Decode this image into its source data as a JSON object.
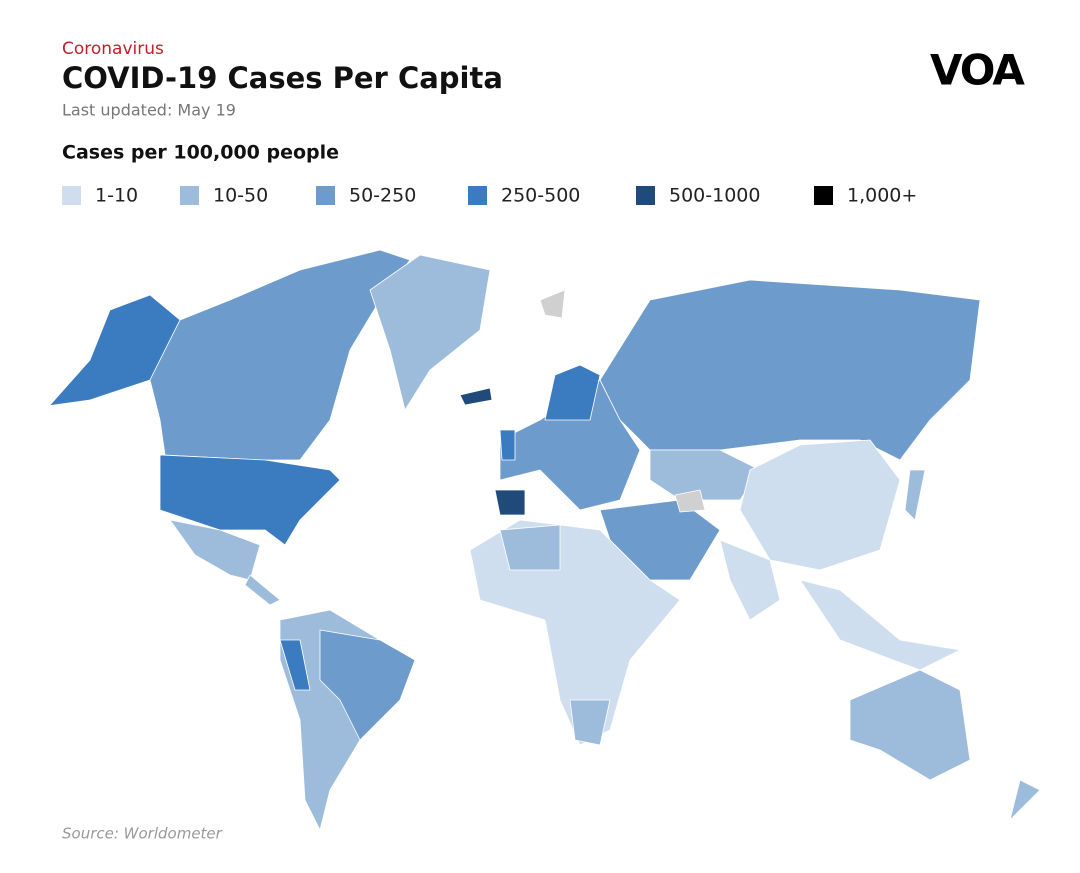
{
  "kicker": "Coronavirus",
  "title": "COVID-19 Cases Per Capita",
  "subtitle": "Last updated: May 19",
  "logo": "VOA",
  "legend": {
    "title": "Cases per 100,000 people",
    "items": [
      {
        "label": "1-10",
        "color": "#cfdeee"
      },
      {
        "label": "10-50",
        "color": "#9dbcdc"
      },
      {
        "label": "50-250",
        "color": "#6d9ccc"
      },
      {
        "label": "250-500",
        "color": "#3b7bbf"
      },
      {
        "label": "500-1000",
        "color": "#1f4a7a"
      },
      {
        "label": "1,000+",
        "color": "#000000"
      }
    ]
  },
  "source": "Source: Worldometer"
}
